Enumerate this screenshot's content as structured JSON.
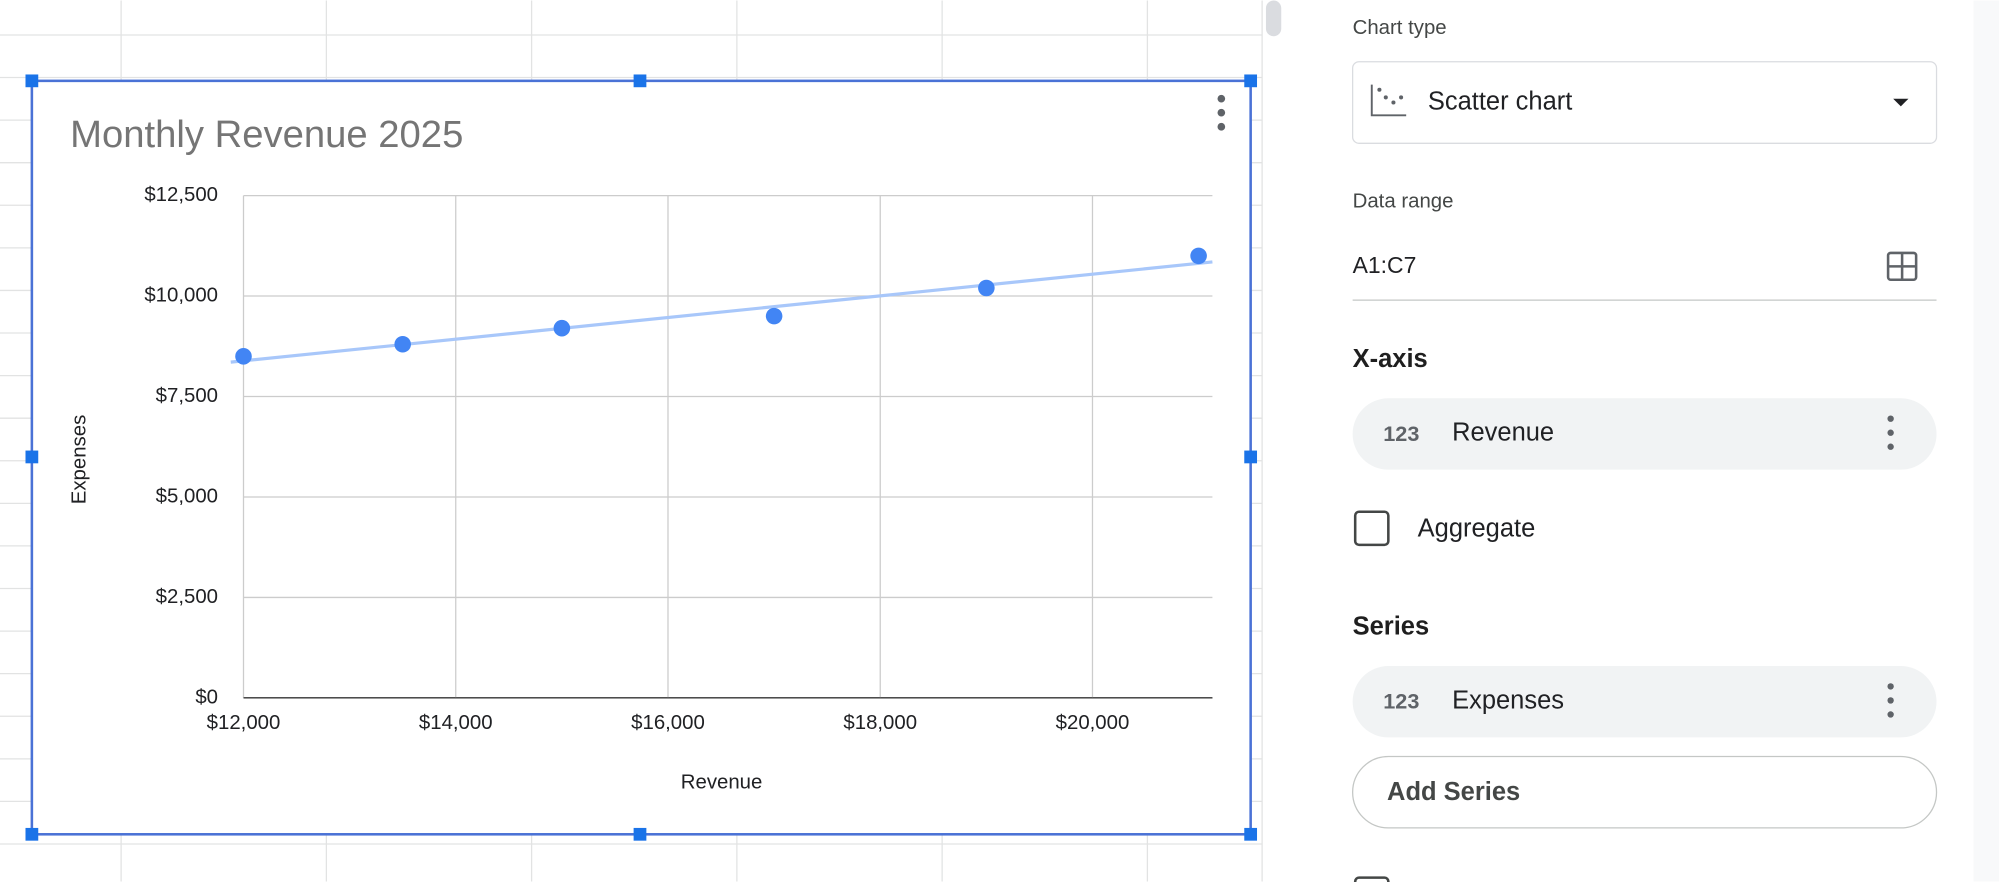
{
  "chart_data": {
    "type": "scatter",
    "title": "Monthly Revenue 2025",
    "x_label": "Revenue",
    "y_label": "Expenses",
    "x": [
      12000,
      13500,
      15000,
      17000,
      19000,
      21000
    ],
    "values": [
      8500,
      8800,
      9200,
      9500,
      10200,
      11000
    ],
    "color": "#4285f4",
    "trendline": true,
    "trendline_color": "#a8c7fa",
    "xlim": [
      12000,
      21130
    ],
    "ylim": [
      0,
      12500
    ],
    "xticks": [
      {
        "value": 12000,
        "label": "$12,000"
      },
      {
        "value": 14000,
        "label": "$14,000"
      },
      {
        "value": 16000,
        "label": "$16,000"
      },
      {
        "value": 18000,
        "label": "$18,000"
      },
      {
        "value": 20000,
        "label": "$20,000"
      }
    ],
    "yticks": [
      {
        "value": 0,
        "label": "$0"
      },
      {
        "value": 2500,
        "label": "$2,500"
      },
      {
        "value": 5000,
        "label": "$5,000"
      },
      {
        "value": 7500,
        "label": "$7,500"
      },
      {
        "value": 10000,
        "label": "$10,000"
      },
      {
        "value": 12500,
        "label": "$12,500"
      }
    ],
    "grid": true
  },
  "sidebar": {
    "chart_type_label": "Chart type",
    "chart_type": "Scatter chart",
    "data_range_label": "Data range",
    "data_range": "A1:C7",
    "x_axis_heading": "X-axis",
    "x_axis_field": {
      "icon": "123",
      "name": "Revenue"
    },
    "aggregate": "Aggregate",
    "series_heading": "Series",
    "series_field": {
      "icon": "123",
      "name": "Expenses"
    },
    "add_series": "Add Series"
  }
}
